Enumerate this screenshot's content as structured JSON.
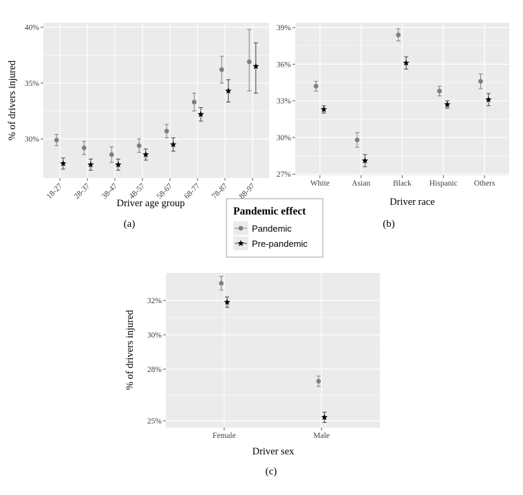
{
  "colors": {
    "panel_bg": "#ebebeb",
    "grid": "#ffffff",
    "pandemic": "#7f7f7f",
    "pre_pandemic": "#000000",
    "errorbar_pandemic": "#7f7f7f",
    "errorbar_pre": "#404040"
  },
  "legend": {
    "title": "Pandemic effect",
    "items": [
      {
        "label": "Pandemic",
        "marker": "circle"
      },
      {
        "label": "Pre-pandemic",
        "marker": "star"
      }
    ]
  },
  "chart_data": [
    {
      "id": "a",
      "type": "scatter",
      "caption": "(a)",
      "xlabel": "Driver age group",
      "ylabel": "% of drivers injured",
      "categories": [
        "18-27",
        "28-37",
        "38-47",
        "48-57",
        "58-67",
        "68-77",
        "78-87",
        "88-97"
      ],
      "ylim": [
        26.5,
        40.4
      ],
      "yticks": [
        30,
        35,
        40
      ],
      "ytick_labels": [
        "30%",
        "35%",
        "40%"
      ],
      "series": [
        {
          "name": "Pandemic",
          "values": [
            29.9,
            29.2,
            28.6,
            29.4,
            30.7,
            33.3,
            36.2,
            36.9
          ],
          "lower": [
            29.4,
            28.6,
            27.9,
            28.8,
            30.1,
            32.5,
            35.0,
            34.3
          ],
          "upper": [
            30.4,
            29.8,
            29.3,
            30.0,
            31.3,
            34.1,
            37.4,
            39.8
          ]
        },
        {
          "name": "Pre-pandemic",
          "values": [
            27.8,
            27.7,
            27.7,
            28.6,
            29.5,
            32.2,
            34.3,
            36.5
          ],
          "lower": [
            27.3,
            27.2,
            27.2,
            28.1,
            28.9,
            31.6,
            33.3,
            34.1
          ],
          "upper": [
            28.3,
            28.2,
            28.2,
            29.1,
            30.1,
            32.8,
            35.3,
            38.6
          ]
        }
      ],
      "grid": true
    },
    {
      "id": "b",
      "type": "scatter",
      "caption": "(b)",
      "xlabel": "Driver race",
      "ylabel": "",
      "categories": [
        "White",
        "Asian",
        "Black",
        "Hispanic",
        "Others"
      ],
      "ylim": [
        26.9,
        39.4
      ],
      "yticks": [
        27,
        30,
        33,
        36,
        39
      ],
      "ytick_labels": [
        "27%",
        "30%",
        "33%",
        "36%",
        "39%"
      ],
      "series": [
        {
          "name": "Pandemic",
          "values": [
            34.2,
            29.8,
            38.4,
            33.8,
            34.6
          ],
          "lower": [
            33.8,
            29.2,
            37.9,
            33.4,
            34.0
          ],
          "upper": [
            34.6,
            30.4,
            38.9,
            34.2,
            35.2
          ]
        },
        {
          "name": "Pre-pandemic",
          "values": [
            32.3,
            28.1,
            36.1,
            32.7,
            33.1
          ],
          "lower": [
            32.0,
            27.6,
            35.6,
            32.4,
            32.6
          ],
          "upper": [
            32.6,
            28.6,
            36.6,
            33.0,
            33.6
          ]
        }
      ],
      "grid": true
    },
    {
      "id": "c",
      "type": "scatter",
      "caption": "(c)",
      "xlabel": "Driver sex",
      "ylabel": "% of drivers injured",
      "categories": [
        "Female",
        "Male"
      ],
      "ylim": [
        24.6,
        33.6
      ],
      "yticks": [
        25,
        28,
        30,
        32
      ],
      "ytick_labels": [
        "25%",
        "28%",
        "30%",
        "32%"
      ],
      "series": [
        {
          "name": "Pandemic",
          "values": [
            33.0,
            27.3
          ],
          "lower": [
            32.6,
            27.0
          ],
          "upper": [
            33.4,
            27.6
          ]
        },
        {
          "name": "Pre-pandemic",
          "values": [
            31.9,
            25.2
          ],
          "lower": [
            31.6,
            24.9
          ],
          "upper": [
            32.2,
            25.5
          ]
        }
      ],
      "grid": true
    }
  ]
}
